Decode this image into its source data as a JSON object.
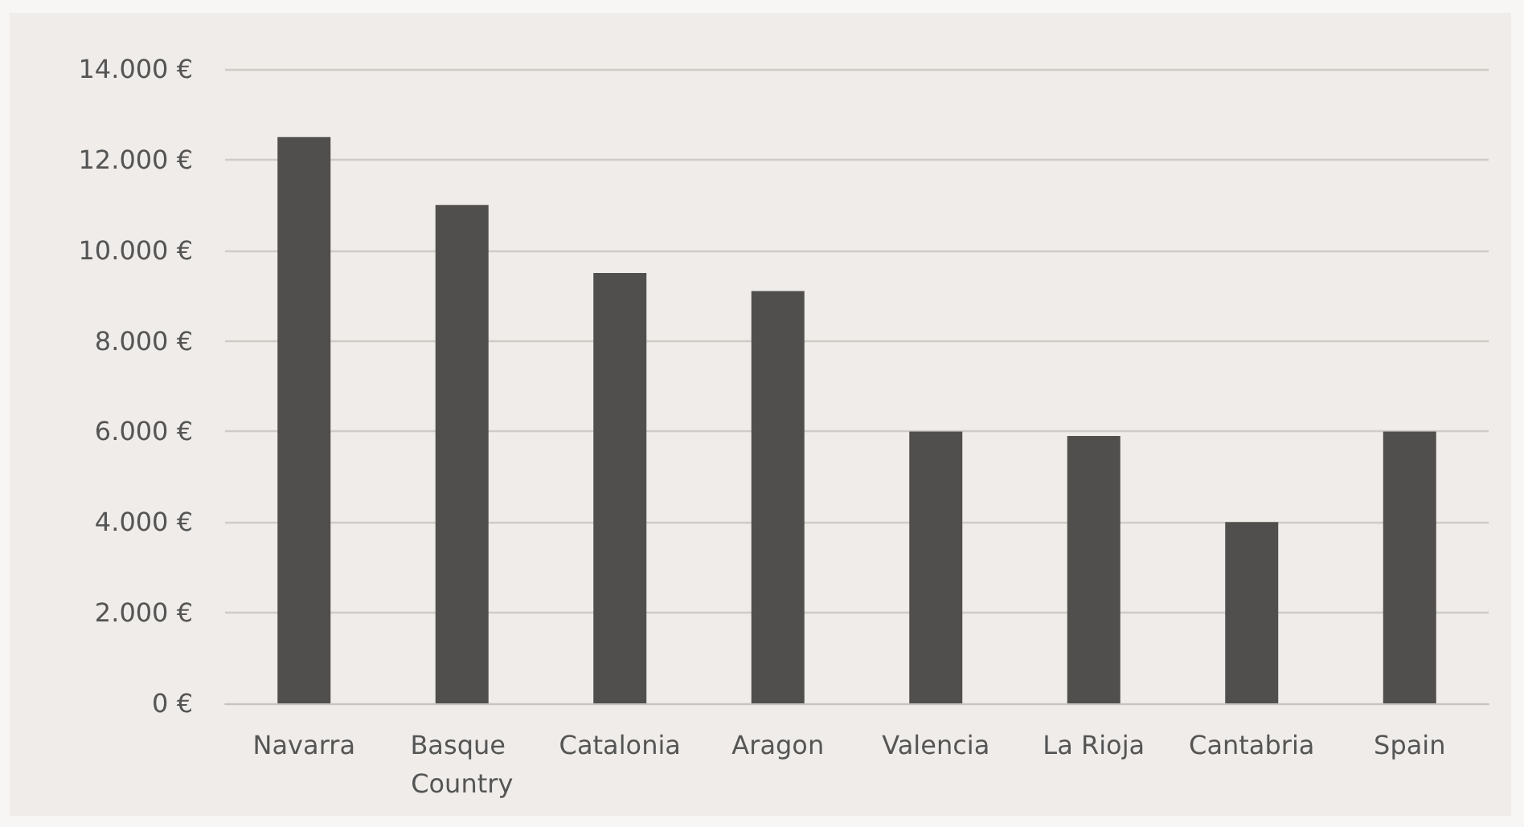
{
  "chart_data": {
    "type": "bar",
    "categories": [
      "Navarra",
      "Basque Country",
      "Catalonia",
      "Aragon",
      "Valencia",
      "La Rioja",
      "Cantabria",
      "Spain"
    ],
    "values": [
      12500,
      11000,
      9500,
      9100,
      6000,
      5900,
      4000,
      6000
    ],
    "color": "#504f4d",
    "ylim": [
      0,
      14000
    ],
    "yticks": [
      {
        "value": 0,
        "label": "0 €"
      },
      {
        "value": 2000,
        "label": "2.000 €"
      },
      {
        "value": 4000,
        "label": "4.000 €"
      },
      {
        "value": 6000,
        "label": "6.000 €"
      },
      {
        "value": 8000,
        "label": "8.000 €"
      },
      {
        "value": 10000,
        "label": "10.000 €"
      },
      {
        "value": 12000,
        "label": "12.000 €"
      },
      {
        "value": 14000,
        "label": "14.000 €"
      }
    ],
    "grid": "y"
  }
}
